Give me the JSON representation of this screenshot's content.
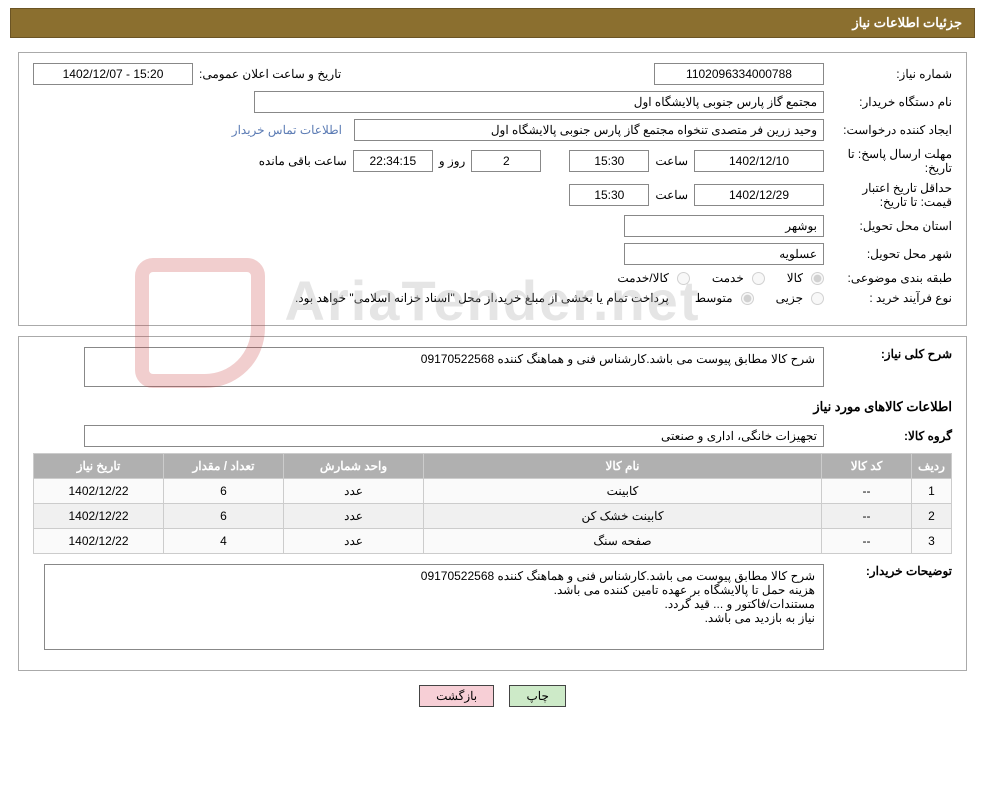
{
  "header": {
    "title": "جزئیات اطلاعات نیاز"
  },
  "watermark": "AriaTender.net",
  "fields": {
    "need_no_label": "شماره نیاز:",
    "need_no": "1102096334000788",
    "announce_label": "تاریخ و ساعت اعلان عمومی:",
    "announce": "1402/12/07 - 15:20",
    "buyer_org_label": "نام دستگاه خریدار:",
    "buyer_org": "مجتمع گاز پارس جنوبی  پالایشگاه اول",
    "requester_label": "ایجاد کننده درخواست:",
    "requester": "وحید زرین فر متصدی تنخواه مجتمع گاز پارس جنوبی  پالایشگاه اول",
    "buyer_contact_link": "اطلاعات تماس خریدار",
    "deadline_label": "مهلت ارسال پاسخ:  تا تاریخ:",
    "deadline_date": "1402/12/10",
    "time_label": "ساعت",
    "deadline_time": "15:30",
    "days_remaining": "2",
    "days_word": "روز و",
    "countdown": "22:34:15",
    "remaining_label": "ساعت باقی مانده",
    "min_valid_label": "حداقل تاریخ اعتبار قیمت: تا تاریخ:",
    "min_valid_date": "1402/12/29",
    "min_valid_time": "15:30",
    "province_label": "استان محل تحویل:",
    "province": "بوشهر",
    "city_label": "شهر محل تحویل:",
    "city": "عسلویه",
    "category_label": "طبقه بندی موضوعی:",
    "radio_goods": "کالا",
    "radio_service": "خدمت",
    "radio_goods_service": "کالا/خدمت",
    "proc_type_label": "نوع فرآیند خرید :",
    "radio_minor": "جزیی",
    "radio_medium": "متوسط",
    "proc_note": "پرداخت تمام یا بخشی از مبلغ خرید،از محل \"اسناد خزانه اسلامی\" خواهد بود."
  },
  "section2": {
    "desc_label": "شرح کلی نیاز:",
    "desc": "شرح کالا مطابق پیوست می باشد.کارشناس فنی و هماهنگ کننده 09170522568",
    "items_header": "اطلاعات کالاهای مورد نیاز",
    "group_label": "گروه کالا:",
    "group": "تجهیزات خانگی، اداری و صنعتی",
    "table": {
      "headers": [
        "ردیف",
        "کد کالا",
        "نام کالا",
        "واحد شمارش",
        "تعداد / مقدار",
        "تاریخ نیاز"
      ],
      "rows": [
        [
          "1",
          "--",
          "کابینت",
          "عدد",
          "6",
          "1402/12/22"
        ],
        [
          "2",
          "--",
          "کابینت خشک کن",
          "عدد",
          "6",
          "1402/12/22"
        ],
        [
          "3",
          "--",
          "صفحه سنگ",
          "عدد",
          "4",
          "1402/12/22"
        ]
      ]
    },
    "buyer_notes_label": "توضیحات خریدار:",
    "buyer_notes": "شرح کالا مطابق پیوست می باشد.کارشناس فنی و هماهنگ کننده 09170522568\nهزینه حمل تا پالایشگاه بر عهده تامین کننده می باشد.\nمستندات/فاکتور و ... قید گردد.\nنیاز به بازدید می باشد."
  },
  "buttons": {
    "print": "چاپ",
    "back": "بازگشت"
  }
}
